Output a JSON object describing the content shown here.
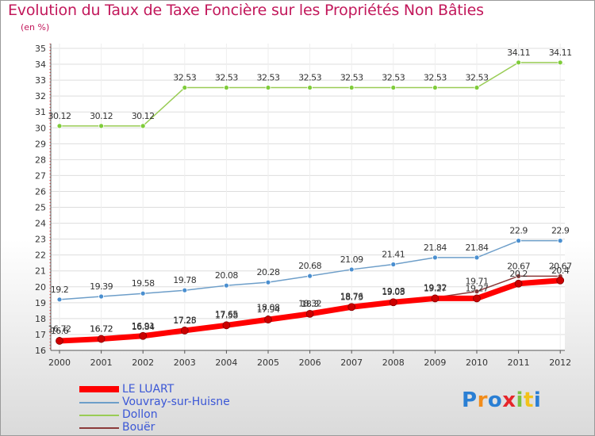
{
  "header": {
    "title": "Evolution du Taux de Taxe Foncière sur les Propriétés Non Bâties",
    "subtitle": "(en %)"
  },
  "brand": {
    "logo_text": "Proxiti"
  },
  "chart_data": {
    "type": "line",
    "title": "Evolution du Taux de Taxe Foncière sur les Propriétés Non Bâties",
    "ylabel": "(en %)",
    "xlabel": "",
    "x": [
      "2000",
      "2001",
      "2002",
      "2003",
      "2004",
      "2005",
      "2006",
      "2007",
      "2008",
      "2009",
      "2010",
      "2011",
      "2012"
    ],
    "ylim": [
      16,
      35
    ],
    "yticks": [
      16,
      17,
      18,
      19,
      20,
      21,
      22,
      23,
      24,
      25,
      26,
      27,
      28,
      29,
      30,
      31,
      32,
      33,
      34,
      35
    ],
    "legend_position": "bottom-left",
    "series": [
      {
        "name": "Bouër",
        "color": "#8b3a3a",
        "values": [
          16.72,
          16.72,
          16.84,
          17.28,
          17.65,
          18.08,
          18.32,
          18.76,
          19.08,
          19.32,
          19.71,
          20.67,
          20.67
        ],
        "labels": [
          "16.72",
          "16.72",
          "16.84",
          "17.28",
          "17.65",
          "18.08",
          "18.32",
          "18.76",
          "19.08",
          "19.32",
          "19.71",
          "20.67",
          "20.67"
        ]
      },
      {
        "name": "Dollon",
        "color": "#99cc55",
        "values": [
          30.12,
          30.12,
          30.12,
          32.53,
          32.53,
          32.53,
          32.53,
          32.53,
          32.53,
          32.53,
          32.53,
          34.11,
          34.11
        ],
        "labels": [
          "30.12",
          "30.12",
          "30.12",
          "32.53",
          "32.53",
          "32.53",
          "32.53",
          "32.53",
          "32.53",
          "32.53",
          "32.53",
          "34.11",
          "34.11"
        ]
      },
      {
        "name": "Vouvray-sur-Huisne",
        "color": "#6d9ec9",
        "values": [
          19.2,
          19.39,
          19.58,
          19.78,
          20.08,
          20.28,
          20.68,
          21.09,
          21.41,
          21.84,
          21.84,
          22.9,
          22.9
        ],
        "labels": [
          "19.2",
          "19.39",
          "19.58",
          "19.78",
          "20.08",
          "20.28",
          "20.68",
          "21.09",
          "21.41",
          "21.84",
          "21.84",
          "22.9",
          "22.9"
        ]
      },
      {
        "name": "LE LUART",
        "color": "#ff0000",
        "values": [
          16.6,
          16.72,
          16.91,
          17.25,
          17.58,
          17.94,
          18.3,
          18.73,
          19.03,
          19.27,
          19.27,
          20.2,
          20.4
        ],
        "labels": [
          "16.6",
          "16.72",
          "16.91",
          "17.25",
          "17.58",
          "17.94",
          "18.3",
          "18.73",
          "19.03",
          "19.27",
          "19.27",
          "20.2",
          "20.4"
        ]
      }
    ]
  },
  "legend": [
    {
      "name": "LE LUART",
      "color": "#ff0000"
    },
    {
      "name": "Vouvray-sur-Huisne",
      "color": "#6d9ec9"
    },
    {
      "name": "Dollon",
      "color": "#99cc55"
    },
    {
      "name": "Bouër",
      "color": "#8b3a3a"
    }
  ]
}
